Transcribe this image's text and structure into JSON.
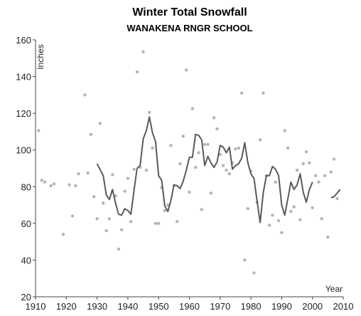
{
  "chart_data": {
    "type": "scatter",
    "title": "Winter Total Snowfall",
    "subtitle": "WANAKENA RNGR SCHOOL",
    "xlabel": "Year",
    "ylabel": "Inches",
    "xlim": [
      1910,
      2010
    ],
    "ylim": [
      20,
      160
    ],
    "xticks": [
      1910,
      1920,
      1930,
      1940,
      1950,
      1960,
      1970,
      1980,
      1990,
      2000,
      2010
    ],
    "yticks": [
      20,
      40,
      60,
      80,
      100,
      120,
      140,
      160
    ],
    "colors": {
      "points": "#b4b4b4",
      "line": "#5a5a5a",
      "axis": "#444444"
    },
    "points": [
      [
        1911,
        110.5
      ],
      [
        1912,
        83.5
      ],
      [
        1913,
        82.5
      ],
      [
        1915,
        80.5
      ],
      [
        1916,
        81.5
      ],
      [
        1919,
        54
      ],
      [
        1921,
        81
      ],
      [
        1922,
        64
      ],
      [
        1923,
        80.5
      ],
      [
        1924,
        87
      ],
      [
        1926,
        130
      ],
      [
        1927,
        87.5
      ],
      [
        1928,
        108.5
      ],
      [
        1929,
        74.5
      ],
      [
        1930,
        62.5
      ],
      [
        1931,
        114.5
      ],
      [
        1932,
        71
      ],
      [
        1933,
        56
      ],
      [
        1934,
        62.5
      ],
      [
        1935,
        86.5
      ],
      [
        1936,
        75
      ],
      [
        1937,
        46
      ],
      [
        1938,
        56.5
      ],
      [
        1939,
        77.5
      ],
      [
        1940,
        84.5
      ],
      [
        1941,
        61
      ],
      [
        1942,
        89.5
      ],
      [
        1943,
        142.5
      ],
      [
        1944,
        90.5
      ],
      [
        1945,
        153.5
      ],
      [
        1946,
        89
      ],
      [
        1947,
        120.5
      ],
      [
        1948,
        101
      ],
      [
        1949,
        60
      ],
      [
        1950,
        60
      ],
      [
        1951,
        79.5
      ],
      [
        1952,
        67
      ],
      [
        1953,
        70
      ],
      [
        1954,
        102.5
      ],
      [
        1955,
        80.5
      ],
      [
        1956,
        61
      ],
      [
        1957,
        92.5
      ],
      [
        1958,
        107.5
      ],
      [
        1959,
        143.5
      ],
      [
        1960,
        77
      ],
      [
        1961,
        122.5
      ],
      [
        1962,
        90.5
      ],
      [
        1963,
        98.5
      ],
      [
        1964,
        67.5
      ],
      [
        1965,
        103
      ],
      [
        1966,
        103
      ],
      [
        1967,
        76.5
      ],
      [
        1968,
        117.5
      ],
      [
        1969,
        111.5
      ],
      [
        1970,
        97.5
      ],
      [
        1971,
        91.5
      ],
      [
        1972,
        89
      ],
      [
        1973,
        87
      ],
      [
        1974,
        93
      ],
      [
        1975,
        100.5
      ],
      [
        1976,
        101
      ],
      [
        1977,
        131
      ],
      [
        1978,
        40
      ],
      [
        1979,
        68
      ],
      [
        1980,
        88.5
      ],
      [
        1981,
        33
      ],
      [
        1982,
        71.5
      ],
      [
        1983,
        105.5
      ],
      [
        1984,
        131
      ],
      [
        1985,
        86
      ],
      [
        1986,
        59
      ],
      [
        1987,
        64.5
      ],
      [
        1988,
        82.5
      ],
      [
        1989,
        61.5
      ],
      [
        1990,
        55
      ],
      [
        1991,
        110.5
      ],
      [
        1992,
        101
      ],
      [
        1993,
        66.5
      ],
      [
        1994,
        69
      ],
      [
        1995,
        89
      ],
      [
        1996,
        62
      ],
      [
        1997,
        92.5
      ],
      [
        1998,
        99
      ],
      [
        1999,
        93
      ],
      [
        2000,
        68.5
      ],
      [
        2001,
        86
      ],
      [
        2002,
        82.5
      ],
      [
        2003,
        62.5
      ],
      [
        2004,
        86
      ],
      [
        2005,
        52.5
      ],
      [
        2006,
        88
      ],
      [
        2007,
        95
      ],
      [
        2008,
        73.5
      ]
    ],
    "moving_average": [
      [
        1930,
        92.5
      ],
      [
        1932,
        86
      ],
      [
        1933,
        75.5
      ],
      [
        1934,
        73
      ],
      [
        1935,
        78.5
      ],
      [
        1936,
        71
      ],
      [
        1937,
        65
      ],
      [
        1938,
        64.5
      ],
      [
        1939,
        68
      ],
      [
        1940,
        67
      ],
      [
        1941,
        65
      ],
      [
        1942,
        78
      ],
      [
        1943,
        90
      ],
      [
        1944,
        91.5
      ],
      [
        1945,
        106
      ],
      [
        1946,
        110.5
      ],
      [
        1947,
        118
      ],
      [
        1948,
        109.5
      ],
      [
        1949,
        104.5
      ],
      [
        1950,
        86
      ],
      [
        1951,
        83.5
      ],
      [
        1952,
        69.5
      ],
      [
        1953,
        66.5
      ],
      [
        1954,
        72.5
      ],
      [
        1955,
        81
      ],
      [
        1956,
        80.5
      ],
      [
        1957,
        79
      ],
      [
        1958,
        83
      ],
      [
        1959,
        89
      ],
      [
        1960,
        96
      ],
      [
        1961,
        96
      ],
      [
        1962,
        108.5
      ],
      [
        1963,
        108
      ],
      [
        1964,
        105.5
      ],
      [
        1965,
        91.5
      ],
      [
        1966,
        96.5
      ],
      [
        1967,
        93
      ],
      [
        1968,
        90.5
      ],
      [
        1969,
        93.5
      ],
      [
        1970,
        102.5
      ],
      [
        1971,
        101.5
      ],
      [
        1972,
        98.5
      ],
      [
        1973,
        101.5
      ],
      [
        1974,
        89.5
      ],
      [
        1975,
        91.5
      ],
      [
        1976,
        92.5
      ],
      [
        1977,
        95.5
      ],
      [
        1978,
        104
      ],
      [
        1979,
        93
      ],
      [
        1980,
        87
      ],
      [
        1981,
        84.5
      ],
      [
        1982,
        72
      ],
      [
        1983,
        60.5
      ],
      [
        1984,
        76.5
      ],
      [
        1985,
        86
      ],
      [
        1986,
        86
      ],
      [
        1987,
        91
      ],
      [
        1988,
        89.5
      ],
      [
        1989,
        86
      ],
      [
        1990,
        70
      ],
      [
        1991,
        64.5
      ],
      [
        1992,
        73.5
      ],
      [
        1993,
        82.5
      ],
      [
        1994,
        78.5
      ],
      [
        1995,
        81
      ],
      [
        1996,
        87
      ],
      [
        1997,
        77
      ],
      [
        1998,
        71.5
      ],
      [
        1999,
        78.5
      ],
      [
        2000,
        82.5
      ],
      null,
      [
        2006,
        74
      ],
      [
        2007,
        74.5
      ],
      [
        2009,
        78.5
      ]
    ]
  }
}
